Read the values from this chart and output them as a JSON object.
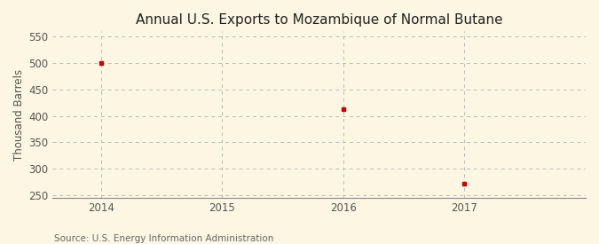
{
  "title": "Annual U.S. Exports to Mozambique of Normal Butane",
  "ylabel": "Thousand Barrels",
  "source": "Source: U.S. Energy Information Administration",
  "x": [
    2014,
    2016,
    2017
  ],
  "y": [
    500,
    412,
    272
  ],
  "xlim": [
    2013.6,
    2018.0
  ],
  "ylim": [
    245,
    560
  ],
  "yticks": [
    250,
    300,
    350,
    400,
    450,
    500,
    550
  ],
  "xticks": [
    2014,
    2015,
    2016,
    2017
  ],
  "marker_color": "#cc0000",
  "marker": "s",
  "marker_size": 3,
  "grid_color": "#bbbbbb",
  "background_color": "#fdf6e3",
  "title_fontsize": 11,
  "axis_fontsize": 8.5,
  "source_fontsize": 7.5,
  "tick_label_color": "#555555",
  "source_color": "#666666"
}
